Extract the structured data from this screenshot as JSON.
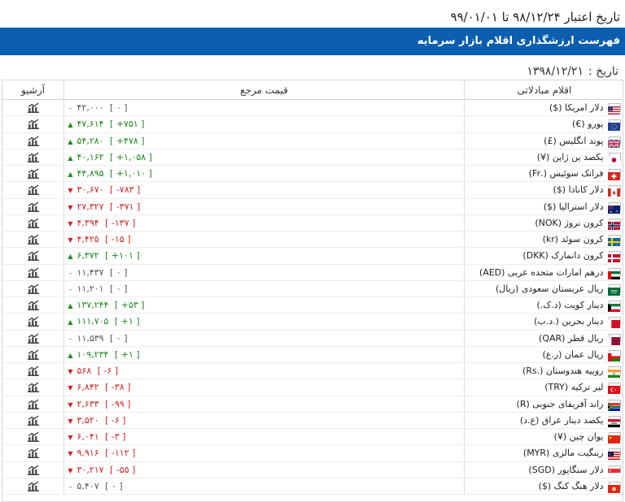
{
  "header": {
    "validity": "تاریخ اعتبار ۹۸/۱۲/۲۴ تا ۹۹/۰۱/۰۱",
    "title": "فهرست ارزشگذاری اقلام بازار سرمایه",
    "date_label": "تاریخ :",
    "date_value": "۱۳۹۸/۱۲/۲۱"
  },
  "table": {
    "columns": {
      "archive": "آرشیو",
      "price": "قیمت مرجع",
      "item": "اقلام مبادلاتی"
    },
    "rows": [
      {
        "item": "دلار امریکا ($)",
        "price": "۴۲,۰۰۰",
        "change": "[ ۰ ]",
        "dir": "flat",
        "flag": "us"
      },
      {
        "item": "یورو (€)",
        "price": "۴۷,۶۱۴",
        "change": "[ +۷۵۱ ]",
        "dir": "up",
        "flag": "eu"
      },
      {
        "item": "پوند انگلیس (£)",
        "price": "۵۴,۲۸۰",
        "change": "[ +۴۷۸ ]",
        "dir": "up",
        "flag": "gb"
      },
      {
        "item": "یکصد ین ژاپن (¥)",
        "price": "۴۰,۱۶۲",
        "change": "[ +۱,۰۵۸ ]",
        "dir": "up",
        "flag": "jp"
      },
      {
        "item": "فرانک سوئیس (.Fr)",
        "price": "۴۴,۸۹۵",
        "change": "[ +۱,۰۱۰ ]",
        "dir": "up",
        "flag": "ch"
      },
      {
        "item": "دلار کانادا ($)",
        "price": "۳۰,۶۷۰",
        "change": "[ -۷۸۳ ]",
        "dir": "down",
        "flag": "ca"
      },
      {
        "item": "دلار استرالیا ($)",
        "price": "۲۷,۳۲۷",
        "change": "[ -۳۷۱ ]",
        "dir": "down",
        "flag": "au"
      },
      {
        "item": "کرون نروژ (NOK)",
        "price": "۴,۳۹۴",
        "change": "[ -۱۳۷ ]",
        "dir": "down",
        "flag": "no"
      },
      {
        "item": "کرون سوئد (kr)",
        "price": "۴,۴۲۵",
        "change": "[ -۱۵ ]",
        "dir": "down",
        "flag": "se"
      },
      {
        "item": "کرون دانمارک (DKK)",
        "price": "۶,۳۷۲",
        "change": "[ +۱۰۱ ]",
        "dir": "up",
        "flag": "dk"
      },
      {
        "item": "درهم امارات متحده عربی (AED)",
        "price": "۱۱,۴۳۷",
        "change": "[ ۰ ]",
        "dir": "flat",
        "flag": "ae"
      },
      {
        "item": "ریال عربستان سعودی (ریال)",
        "price": "۱۱,۲۰۱",
        "change": "[ ۰ ]",
        "dir": "flat",
        "flag": "sa"
      },
      {
        "item": "دینار کویت (د.ک.)",
        "price": "۱۳۷,۲۴۴",
        "change": "[ +۵۳ ]",
        "dir": "up",
        "flag": "kw"
      },
      {
        "item": "دینار بحرین (.د.ب)",
        "price": "۱۱۱,۷۰۵",
        "change": "[ +۱ ]",
        "dir": "up",
        "flag": "bh"
      },
      {
        "item": "ریال قطر (QAR)",
        "price": "۱۱,۵۳۹",
        "change": "[ ۰ ]",
        "dir": "flat",
        "flag": "qa"
      },
      {
        "item": "ریال عمان (ر.ع)",
        "price": "۱۰۹,۲۳۴",
        "change": "[ +۱ ]",
        "dir": "up",
        "flag": "om"
      },
      {
        "item": "روپیه هندوستان (.Rs)",
        "price": "۵۶۸",
        "change": "[ -۶ ]",
        "dir": "down",
        "flag": "in"
      },
      {
        "item": "لیر ترکیه (TRY)",
        "price": "۶,۸۴۲",
        "change": "[ -۳۸ ]",
        "dir": "down",
        "flag": "tr"
      },
      {
        "item": "راند آفریقای جنوبی (R)",
        "price": "۲,۶۳۳",
        "change": "[ -۹۹ ]",
        "dir": "down",
        "flag": "za"
      },
      {
        "item": "یکصد دینار عراق (ع.د)",
        "price": "۳,۵۲۰",
        "change": "[ -۶ ]",
        "dir": "down",
        "flag": "iq"
      },
      {
        "item": "یوان چین (¥)",
        "price": "۶,۰۴۱",
        "change": "[ -۳ ]",
        "dir": "down",
        "flag": "cn"
      },
      {
        "item": "رینگیت مالزی (MYR)",
        "price": "۹,۹۱۶",
        "change": "[ -۱۱۲ ]",
        "dir": "down",
        "flag": "my"
      },
      {
        "item": "دلار سنگاپور (SGD)",
        "price": "۳۰,۲۱۷",
        "change": "[ -۵۵ ]",
        "dir": "down",
        "flag": "sg"
      },
      {
        "item": "دلار هنگ کنگ ($)",
        "price": "۵,۴۰۷",
        "change": "[ ۰ ]",
        "dir": "flat",
        "flag": "hk"
      }
    ]
  },
  "colors": {
    "banner": "#0b5fae",
    "up": "#1b8a1b",
    "down": "#d42020",
    "flat": "#555555"
  },
  "icons": {
    "archive": "chart-icon",
    "up": "triangle-up",
    "down": "triangle-down",
    "flat": "dash"
  }
}
